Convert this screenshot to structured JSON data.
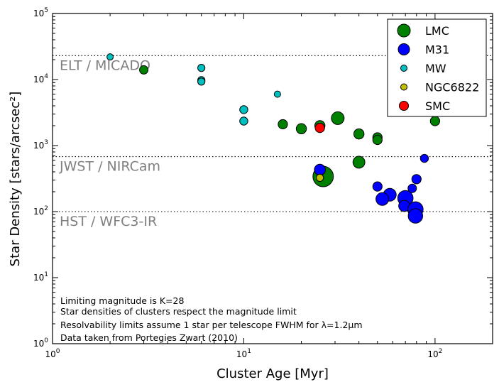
{
  "chart_data": {
    "type": "scatter",
    "xlabel": "Cluster Age [Myr]",
    "ylabel": "Star Density [stars/arcsec²]",
    "xscale": "log",
    "yscale": "log",
    "xlim": [
      1,
      200
    ],
    "ylim": [
      1,
      100000
    ],
    "x_ticks": [
      {
        "value": 1,
        "base": "10",
        "exp": "0"
      },
      {
        "value": 10,
        "base": "10",
        "exp": "1"
      },
      {
        "value": 100,
        "base": "10",
        "exp": "2"
      }
    ],
    "y_ticks": [
      {
        "value": 1,
        "base": "10",
        "exp": "0"
      },
      {
        "value": 10,
        "base": "10",
        "exp": "1"
      },
      {
        "value": 100,
        "base": "10",
        "exp": "2"
      },
      {
        "value": 1000,
        "base": "10",
        "exp": "3"
      },
      {
        "value": 10000,
        "base": "10",
        "exp": "4"
      },
      {
        "value": 100000,
        "base": "10",
        "exp": "5"
      }
    ],
    "limits": [
      {
        "label": "ELT / MICADO",
        "y": 23000
      },
      {
        "label": "JWST / NIRCam",
        "y": 680
      },
      {
        "label": "HST / WFC3-IR",
        "y": 100
      }
    ],
    "legend_position": "top-right",
    "series": [
      {
        "name": "LMC",
        "color": "#008000",
        "points": [
          {
            "x": 3,
            "y": 14000,
            "size": 1
          },
          {
            "x": 16,
            "y": 2100,
            "size": 1.1
          },
          {
            "x": 20,
            "y": 1800,
            "size": 1.2
          },
          {
            "x": 25,
            "y": 2000,
            "size": 1.2
          },
          {
            "x": 31,
            "y": 2600,
            "size": 1.5
          },
          {
            "x": 40,
            "y": 1500,
            "size": 1.2
          },
          {
            "x": 50,
            "y": 1330,
            "size": 1.1
          },
          {
            "x": 50,
            "y": 1220,
            "size": 1.1
          },
          {
            "x": 100,
            "y": 2350,
            "size": 1.1
          },
          {
            "x": 40,
            "y": 560,
            "size": 1.4
          },
          {
            "x": 26,
            "y": 340,
            "size": 2.4
          }
        ]
      },
      {
        "name": "M31",
        "color": "#0000ff",
        "points": [
          {
            "x": 25,
            "y": 430,
            "size": 1.3
          },
          {
            "x": 88,
            "y": 640,
            "size": 0.95
          },
          {
            "x": 80,
            "y": 310,
            "size": 1.1
          },
          {
            "x": 50,
            "y": 240,
            "size": 1.1
          },
          {
            "x": 76,
            "y": 225,
            "size": 1
          },
          {
            "x": 58,
            "y": 180,
            "size": 1.5
          },
          {
            "x": 53,
            "y": 155,
            "size": 1.5
          },
          {
            "x": 70,
            "y": 160,
            "size": 1.8
          },
          {
            "x": 69,
            "y": 122,
            "size": 1.3
          },
          {
            "x": 79,
            "y": 108,
            "size": 1.8
          },
          {
            "x": 79,
            "y": 86,
            "size": 1.7
          }
        ]
      },
      {
        "name": "MW",
        "color": "#00bfbf",
        "points": [
          {
            "x": 2,
            "y": 22000,
            "size": 0.75
          },
          {
            "x": 6,
            "y": 15000,
            "size": 0.85
          },
          {
            "x": 6,
            "y": 9800,
            "size": 0.85
          },
          {
            "x": 6,
            "y": 9300,
            "size": 0.85
          },
          {
            "x": 15,
            "y": 6000,
            "size": 0.75
          },
          {
            "x": 10,
            "y": 3500,
            "size": 0.95
          },
          {
            "x": 10,
            "y": 2350,
            "size": 0.95
          }
        ]
      },
      {
        "name": "NGC6822",
        "color": "#bfbf00",
        "points": [
          {
            "x": 25,
            "y": 325,
            "size": 0.85
          }
        ]
      },
      {
        "name": "SMC",
        "color": "#ff0000",
        "points": [
          {
            "x": 25,
            "y": 1850,
            "size": 1.1
          }
        ]
      }
    ],
    "annotations": [
      "Limiting magnitude is K=28",
      "Star densities of clusters respect the magnitude limit",
      "Resolvability limits assume 1 star per telescope FWHM for λ=1.2μm",
      "Data taken from Portegies Zwart (2010)"
    ]
  }
}
